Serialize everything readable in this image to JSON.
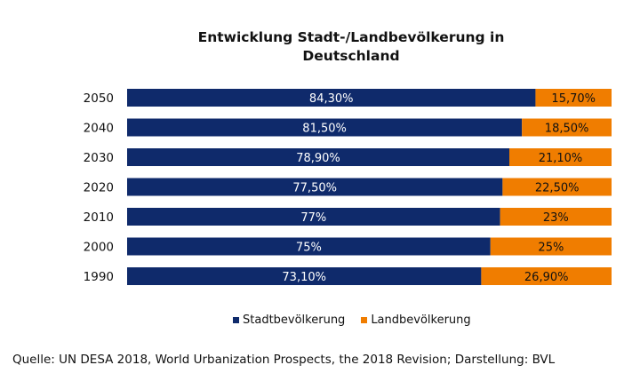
{
  "chart_data": {
    "type": "bar",
    "orientation": "horizontal",
    "stacked": true,
    "percent_stacked": true,
    "title": "Entwicklung Stadt-/Landbevölkerung in Deutschland",
    "title_lines": [
      "Entwicklung Stadt-/Landbevölkerung in",
      "Deutschland"
    ],
    "categories": [
      "2050",
      "2040",
      "2030",
      "2020",
      "2010",
      "2000",
      "1990"
    ],
    "series": [
      {
        "name": "Stadtbevölkerung",
        "color": "#0f2a6b",
        "values": [
          84.3,
          81.5,
          78.9,
          77.5,
          77,
          75,
          73.1
        ],
        "labels": [
          "84,30%",
          "81,50%",
          "78,90%",
          "77,50%",
          "77%",
          "75%",
          "73,10%"
        ],
        "label_color": "#ffffff"
      },
      {
        "name": "Landbevölkerung",
        "color": "#f07d00",
        "values": [
          15.7,
          18.5,
          21.1,
          22.5,
          23,
          25,
          26.9
        ],
        "labels": [
          "15,70%",
          "18,50%",
          "21,10%",
          "22,50%",
          "23%",
          "25%",
          "26,90%"
        ],
        "label_color": "#111111"
      }
    ],
    "xlim": [
      0,
      100
    ],
    "grid": false,
    "legend_position": "bottom"
  },
  "source": "Quelle: UN DESA 2018, World Urbanization Prospects, the 2018 Revision; Darstellung: BVL"
}
